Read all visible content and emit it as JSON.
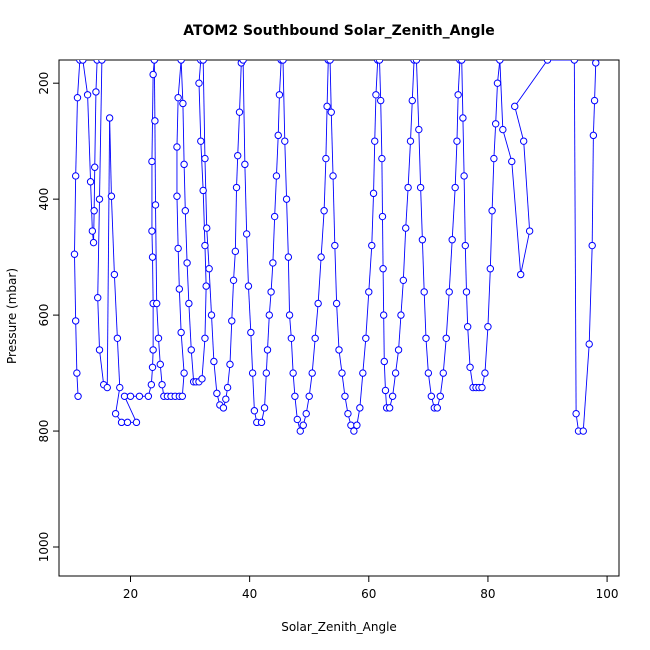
{
  "chart_data": {
    "type": "line",
    "title": "ATOM2 Southbound Solar_Zenith_Angle",
    "xlabel": "Solar_Zenith_Angle",
    "ylabel": "Pressure (mbar)",
    "xlim": [
      8,
      102
    ],
    "ylim": [
      1050,
      160
    ],
    "y_reversed": true,
    "x_ticks": [
      20,
      40,
      60,
      80,
      100
    ],
    "y_ticks": [
      200,
      400,
      600,
      800,
      1000
    ],
    "line_style": "line-and-circle-markers",
    "colors": {
      "series": "#0000ff",
      "axis": "#000000",
      "background": "#ffffff"
    },
    "grid": false,
    "series": [
      {
        "values": [
          [
            11.2,
            740
          ],
          [
            11.0,
            700
          ],
          [
            10.8,
            610
          ],
          [
            10.6,
            495
          ],
          [
            10.8,
            360
          ],
          [
            11.1,
            225
          ],
          [
            11.5,
            160
          ],
          [
            12.0,
            160
          ],
          [
            12.8,
            220
          ],
          [
            13.3,
            370
          ],
          [
            13.6,
            455
          ],
          [
            13.8,
            475
          ],
          [
            13.9,
            420
          ],
          [
            14.0,
            345
          ],
          [
            14.2,
            215
          ],
          [
            14.4,
            160
          ],
          [
            15.2,
            160
          ],
          [
            14.8,
            400
          ],
          [
            14.5,
            570
          ],
          [
            14.8,
            660
          ],
          [
            15.5,
            720
          ],
          [
            16.1,
            725
          ],
          [
            16.5,
            260
          ],
          [
            16.8,
            395
          ],
          [
            17.3,
            530
          ],
          [
            17.8,
            640
          ],
          [
            18.2,
            725
          ],
          [
            17.5,
            770
          ],
          [
            18.5,
            785
          ],
          [
            19.5,
            785
          ],
          [
            21.0,
            785
          ],
          [
            19.0,
            740
          ],
          [
            20.0,
            740
          ],
          [
            21.5,
            740
          ],
          [
            23.0,
            740
          ],
          [
            23.5,
            720
          ],
          [
            23.7,
            690
          ],
          [
            23.8,
            660
          ],
          [
            23.8,
            580
          ],
          [
            23.7,
            500
          ],
          [
            23.6,
            455
          ],
          [
            23.6,
            335
          ],
          [
            23.8,
            185
          ],
          [
            24.0,
            160
          ],
          [
            24.1,
            265
          ],
          [
            24.2,
            410
          ],
          [
            24.4,
            580
          ],
          [
            24.7,
            640
          ],
          [
            25.0,
            685
          ],
          [
            25.3,
            720
          ],
          [
            25.6,
            740
          ],
          [
            26.2,
            740
          ],
          [
            26.8,
            740
          ],
          [
            27.5,
            740
          ],
          [
            28.2,
            740
          ],
          [
            28.7,
            740
          ],
          [
            29.0,
            700
          ],
          [
            28.5,
            630
          ],
          [
            28.2,
            555
          ],
          [
            28.0,
            485
          ],
          [
            27.8,
            395
          ],
          [
            27.8,
            310
          ],
          [
            28.0,
            225
          ],
          [
            28.5,
            160
          ],
          [
            28.8,
            235
          ],
          [
            29.0,
            340
          ],
          [
            29.2,
            420
          ],
          [
            29.5,
            510
          ],
          [
            29.8,
            580
          ],
          [
            30.2,
            660
          ],
          [
            30.6,
            715
          ],
          [
            31.0,
            715
          ],
          [
            31.5,
            715
          ],
          [
            32.0,
            710
          ],
          [
            32.5,
            640
          ],
          [
            32.7,
            550
          ],
          [
            32.5,
            480
          ],
          [
            32.2,
            385
          ],
          [
            31.8,
            300
          ],
          [
            31.5,
            200
          ],
          [
            31.8,
            160
          ],
          [
            32.2,
            160
          ],
          [
            32.5,
            330
          ],
          [
            32.8,
            450
          ],
          [
            33.2,
            520
          ],
          [
            33.6,
            600
          ],
          [
            34.0,
            680
          ],
          [
            34.5,
            735
          ],
          [
            35.0,
            755
          ],
          [
            35.6,
            760
          ],
          [
            36.0,
            745
          ],
          [
            36.3,
            725
          ],
          [
            36.7,
            685
          ],
          [
            37.0,
            610
          ],
          [
            37.3,
            540
          ],
          [
            37.6,
            490
          ],
          [
            37.8,
            380
          ],
          [
            38.0,
            325
          ],
          [
            38.3,
            250
          ],
          [
            38.6,
            165
          ],
          [
            38.9,
            160
          ],
          [
            39.2,
            340
          ],
          [
            39.5,
            460
          ],
          [
            39.8,
            550
          ],
          [
            40.2,
            630
          ],
          [
            40.5,
            700
          ],
          [
            40.8,
            765
          ],
          [
            41.2,
            785
          ],
          [
            42.0,
            785
          ],
          [
            42.5,
            760
          ],
          [
            42.8,
            700
          ],
          [
            43.0,
            660
          ],
          [
            43.3,
            600
          ],
          [
            43.6,
            560
          ],
          [
            43.9,
            510
          ],
          [
            44.2,
            430
          ],
          [
            44.5,
            360
          ],
          [
            44.8,
            290
          ],
          [
            45.0,
            220
          ],
          [
            45.3,
            160
          ],
          [
            45.6,
            160
          ],
          [
            45.9,
            300
          ],
          [
            46.2,
            400
          ],
          [
            46.5,
            500
          ],
          [
            46.7,
            600
          ],
          [
            47.0,
            640
          ],
          [
            47.3,
            700
          ],
          [
            47.6,
            740
          ],
          [
            48.0,
            780
          ],
          [
            48.5,
            800
          ],
          [
            49.0,
            790
          ],
          [
            49.5,
            770
          ],
          [
            50.0,
            740
          ],
          [
            50.5,
            700
          ],
          [
            51.0,
            640
          ],
          [
            51.5,
            580
          ],
          [
            52.0,
            500
          ],
          [
            52.5,
            420
          ],
          [
            52.8,
            330
          ],
          [
            53.0,
            240
          ],
          [
            53.2,
            160
          ],
          [
            53.5,
            160
          ],
          [
            53.7,
            250
          ],
          [
            54.0,
            360
          ],
          [
            54.3,
            480
          ],
          [
            54.6,
            580
          ],
          [
            55.0,
            660
          ],
          [
            55.5,
            700
          ],
          [
            56.0,
            740
          ],
          [
            56.5,
            770
          ],
          [
            57.0,
            790
          ],
          [
            57.5,
            800
          ],
          [
            58.0,
            790
          ],
          [
            58.5,
            760
          ],
          [
            59.0,
            700
          ],
          [
            59.5,
            640
          ],
          [
            60.0,
            560
          ],
          [
            60.5,
            480
          ],
          [
            60.8,
            390
          ],
          [
            61.0,
            300
          ],
          [
            61.2,
            220
          ],
          [
            61.5,
            160
          ],
          [
            61.8,
            160
          ],
          [
            62.0,
            230
          ],
          [
            62.2,
            330
          ],
          [
            62.3,
            430
          ],
          [
            62.4,
            520
          ],
          [
            62.5,
            600
          ],
          [
            62.6,
            680
          ],
          [
            62.8,
            730
          ],
          [
            63.0,
            760
          ],
          [
            63.5,
            760
          ],
          [
            64.0,
            740
          ],
          [
            64.5,
            700
          ],
          [
            65.0,
            660
          ],
          [
            65.4,
            600
          ],
          [
            65.8,
            540
          ],
          [
            66.2,
            450
          ],
          [
            66.6,
            380
          ],
          [
            67.0,
            300
          ],
          [
            67.3,
            230
          ],
          [
            67.6,
            160
          ],
          [
            68.0,
            160
          ],
          [
            68.4,
            280
          ],
          [
            68.7,
            380
          ],
          [
            69.0,
            470
          ],
          [
            69.3,
            560
          ],
          [
            69.6,
            640
          ],
          [
            70.0,
            700
          ],
          [
            70.5,
            740
          ],
          [
            71.0,
            760
          ],
          [
            71.5,
            760
          ],
          [
            72.0,
            740
          ],
          [
            72.5,
            700
          ],
          [
            73.0,
            640
          ],
          [
            73.5,
            560
          ],
          [
            74.0,
            470
          ],
          [
            74.5,
            380
          ],
          [
            74.8,
            300
          ],
          [
            75.0,
            220
          ],
          [
            75.3,
            160
          ],
          [
            75.6,
            160
          ],
          [
            75.8,
            260
          ],
          [
            76.0,
            360
          ],
          [
            76.2,
            480
          ],
          [
            76.4,
            560
          ],
          [
            76.6,
            620
          ],
          [
            77.0,
            690
          ],
          [
            77.5,
            725
          ],
          [
            78.0,
            725
          ],
          [
            78.5,
            725
          ],
          [
            79.0,
            725
          ],
          [
            79.5,
            700
          ],
          [
            80.0,
            620
          ],
          [
            80.4,
            520
          ],
          [
            80.7,
            420
          ],
          [
            81.0,
            330
          ],
          [
            81.3,
            270
          ],
          [
            81.6,
            200
          ],
          [
            82.0,
            160
          ],
          [
            82.5,
            280
          ],
          [
            84.0,
            335
          ],
          [
            85.5,
            530
          ],
          [
            87.0,
            455
          ],
          [
            86.0,
            300
          ],
          [
            84.5,
            240
          ],
          [
            90.0,
            160
          ],
          [
            94.5,
            160
          ],
          [
            94.8,
            770
          ],
          [
            95.2,
            800
          ],
          [
            96.0,
            800
          ],
          [
            97.0,
            650
          ],
          [
            97.5,
            480
          ],
          [
            97.7,
            290
          ],
          [
            97.9,
            230
          ],
          [
            98.1,
            165
          ]
        ]
      }
    ]
  }
}
